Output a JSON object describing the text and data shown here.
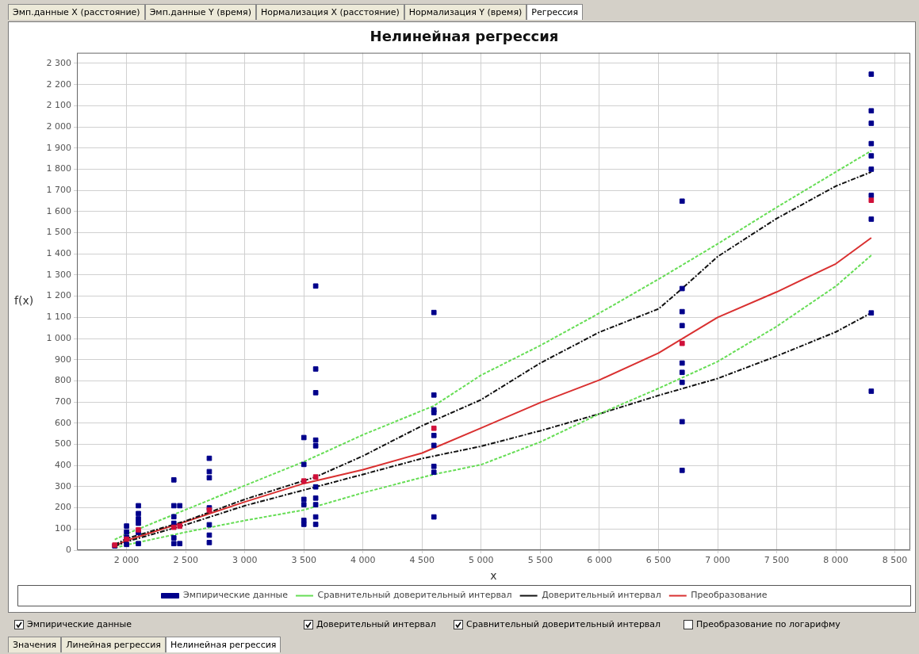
{
  "chart_data": {
    "type": "scatter",
    "title": "Нелинейная регрессия",
    "xlabel": "x",
    "ylabel": "f(x)",
    "xlim": [
      1580,
      8630
    ],
    "ylim": [
      0,
      2350
    ],
    "xticks": [
      {
        "value": 2000,
        "label": "2 000"
      },
      {
        "value": 2500,
        "label": "2 500"
      },
      {
        "value": 3000,
        "label": "3 000"
      },
      {
        "value": 3500,
        "label": "3 500"
      },
      {
        "value": 4000,
        "label": "4 000"
      },
      {
        "value": 4500,
        "label": "4 500"
      },
      {
        "value": 5000,
        "label": "5 000"
      },
      {
        "value": 5500,
        "label": "5 500"
      },
      {
        "value": 6000,
        "label": "6 000"
      },
      {
        "value": 6500,
        "label": "6 500"
      },
      {
        "value": 7000,
        "label": "7 000"
      },
      {
        "value": 7500,
        "label": "7 500"
      },
      {
        "value": 8000,
        "label": "8 000"
      },
      {
        "value": 8500,
        "label": "8 500"
      }
    ],
    "yticks": [
      0,
      100,
      200,
      300,
      400,
      500,
      600,
      700,
      800,
      900,
      {
        "value": 1000,
        "label": "1 000"
      },
      {
        "value": 1100,
        "label": "1 100"
      },
      {
        "value": 1200,
        "label": "1 200"
      },
      {
        "value": 1300,
        "label": "1 300"
      },
      {
        "value": 1400,
        "label": "1 400"
      },
      {
        "value": 1500,
        "label": "1 500"
      },
      {
        "value": 1600,
        "label": "1 600"
      },
      {
        "value": 1700,
        "label": "1 700"
      },
      {
        "value": 1800,
        "label": "1 800"
      },
      {
        "value": 1900,
        "label": "1 900"
      },
      {
        "value": 2000,
        "label": "2 000"
      },
      {
        "value": 2100,
        "label": "2 100"
      },
      {
        "value": 2200,
        "label": "2 200"
      },
      {
        "value": 2300,
        "label": "2 300"
      }
    ],
    "grid": true,
    "legend": "bottom",
    "series": [
      {
        "name": "Эмпирические данные",
        "marker": "square",
        "color": "#00008b",
        "x": [
          1900,
          2000,
          2000,
          2000,
          2000,
          2100,
          2100,
          2100,
          2100,
          2100,
          2100,
          2400,
          2400,
          2400,
          2400,
          2400,
          2400,
          2450,
          2450,
          2700,
          2700,
          2700,
          2700,
          2700,
          2700,
          2700,
          3500,
          3500,
          3500,
          3500,
          3500,
          3500,
          3600,
          3600,
          3600,
          3600,
          3600,
          3600,
          3600,
          3600,
          3600,
          3600,
          4600,
          4600,
          4600,
          4600,
          4600,
          4600,
          4600,
          4600,
          4600,
          6700,
          6700,
          6700,
          6700,
          6700,
          6700,
          6700,
          6700,
          6700,
          8300,
          8300,
          8300,
          8300,
          8300,
          8300,
          8300,
          8300,
          8300,
          8300
        ],
        "values": [
          20,
          114,
          86,
          61,
          27,
          210,
          173,
          148,
          127,
          83,
          31,
          332,
          210,
          158,
          127,
          58,
          31,
          210,
          31,
          434,
          371,
          342,
          200,
          120,
          71,
          36,
          532,
          405,
          240,
          215,
          141,
          122,
          1248,
          856,
          744,
          520,
          493,
          299,
          246,
          215,
          157,
          122,
          1123,
          733,
          663,
          650,
          542,
          495,
          396,
          368,
          157,
          1649,
          1236,
          1127,
          1061,
          884,
          840,
          793,
          607,
          377,
          2249,
          2076,
          2017,
          1921,
          1863,
          1800,
          1676,
          1564,
          1121,
          751
        ]
      },
      {
        "marker": "square",
        "color": "#d0103a",
        "x": [
          1900,
          2000,
          2100,
          2400,
          2450,
          2700,
          3500,
          3600,
          4600,
          6700,
          8300
        ],
        "values": [
          24,
          52,
          96,
          108,
          114,
          189,
          327,
          346,
          576,
          977,
          1653
        ]
      },
      {
        "name": "Преобразование",
        "type": "line",
        "line_style": "solid",
        "color": "#d93030",
        "x": [
          1900,
          2000,
          2500,
          3000,
          3500,
          4000,
          4500,
          5000,
          5500,
          6000,
          6500,
          7000,
          7500,
          8000,
          8300
        ],
        "values": [
          20,
          46,
          135,
          228,
          315,
          380,
          459,
          577,
          697,
          804,
          931,
          1100,
          1220,
          1353,
          1476
        ]
      },
      {
        "name": "Доверительный интервал",
        "type": "line",
        "line_style": "dashdot",
        "color": "#111111",
        "x": [
          1900,
          2000,
          2500,
          3000,
          3600,
          4000,
          4500,
          5000,
          5500,
          6000,
          6500,
          6700,
          7000,
          7500,
          8000,
          8300
        ],
        "values": [
          25,
          55,
          138,
          240,
          346,
          445,
          588,
          711,
          884,
          1030,
          1140,
          1236,
          1387,
          1567,
          1720,
          1787
        ]
      },
      {
        "type": "line",
        "line_style": "dashdot",
        "color": "#111111",
        "x": [
          1900,
          2000,
          2500,
          3000,
          3500,
          4000,
          4500,
          5000,
          5500,
          6000,
          6500,
          7000,
          7500,
          8000,
          8300
        ],
        "values": [
          18,
          40,
          120,
          210,
          284,
          358,
          433,
          491,
          564,
          644,
          731,
          811,
          917,
          1031,
          1121
        ]
      },
      {
        "name": "Сравнительный доверительный интервал",
        "type": "line",
        "line_style": "dashed",
        "color": "#66dd55",
        "x": [
          1900,
          2000,
          2500,
          3000,
          3500,
          4000,
          4600,
          5000,
          5500,
          6000,
          6500,
          7000,
          7500,
          8000,
          8300
        ],
        "values": [
          50,
          77,
          191,
          305,
          418,
          545,
          682,
          827,
          967,
          1120,
          1280,
          1447,
          1620,
          1787,
          1887
        ]
      },
      {
        "type": "line",
        "line_style": "dashed",
        "color": "#66dd55",
        "x": [
          1900,
          2000,
          2500,
          3000,
          3500,
          4000,
          4600,
          5000,
          5500,
          6000,
          6500,
          7000,
          7500,
          8000,
          8300
        ],
        "values": [
          10,
          25,
          85,
          140,
          190,
          271,
          358,
          404,
          511,
          644,
          764,
          891,
          1057,
          1247,
          1393
        ]
      }
    ],
    "annotations": [
      "Эмп.данные X (расстояние)",
      "Эмп.данные Y (время)",
      "Нормализация X (расстояние)",
      "Нормализация Y (время)",
      "Регрессия",
      "Эмпирические данные",
      "Доверительный интервал",
      "Сравнительный доверительный интервал",
      "Преобразование по логарифму",
      "Значения",
      "Линейная регрессия",
      "Нелинейная регрессия"
    ]
  }
}
